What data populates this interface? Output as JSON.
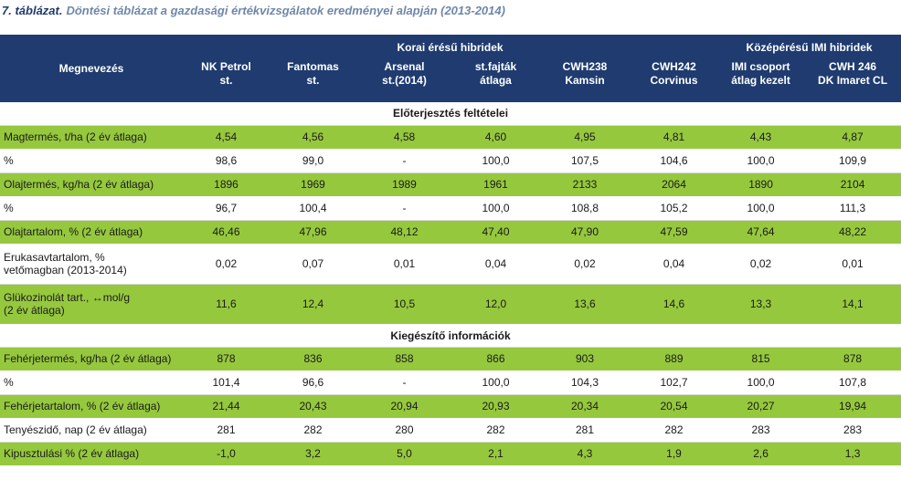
{
  "caption": {
    "number": "7. táblázat.",
    "title": "Döntési táblázat a gazdasági értékvizsgálatok eredményei alapján (2013-2014)"
  },
  "table": {
    "header": {
      "name_column": "Megnevezés",
      "groups": [
        {
          "title": "Korai érésű hibridek",
          "span": 6
        },
        {
          "title": "Középérésű  IMI hibridek",
          "span": 2
        }
      ],
      "columns": [
        "NK Petrol\nst.",
        "Fantomas\nst.",
        "Arsenal\nst.(2014)",
        "st.fajták\nátlaga",
        "CWH238\nKamsin",
        "CWH242\nCorvinus",
        "IMI csoport\nátlag kezelt",
        "CWH 246\nDK Imaret CL"
      ]
    },
    "sections": [
      {
        "title": "Előterjesztés feltételei",
        "rows": [
          {
            "label": "Magtermés, t/ha (2 év átlaga)",
            "values": [
              "4,54",
              "4,56",
              "4,58",
              "4,60",
              "4,95",
              "4,81",
              "4,43",
              "4,87"
            ]
          },
          {
            "label": "%",
            "values": [
              "98,6",
              "99,0",
              "-",
              "100,0",
              "107,5",
              "104,6",
              "100,0",
              "109,9"
            ]
          },
          {
            "label": "Olajtermés, kg/ha (2 év átlaga)",
            "values": [
              "1896",
              "1969",
              "1989",
              "1961",
              "2133",
              "2064",
              "1890",
              "2104"
            ]
          },
          {
            "label": "%",
            "values": [
              "96,7",
              "100,4",
              "-",
              "100,0",
              "108,8",
              "105,2",
              "100,0",
              "111,3"
            ]
          },
          {
            "label": "Olajtartalom, % (2 év átlaga)",
            "values": [
              "46,46",
              "47,96",
              "48,12",
              "47,40",
              "47,90",
              "47,59",
              "47,64",
              "48,22"
            ]
          },
          {
            "label": "Erukasavtartalom, %\nvetőmagban (2013-2014)",
            "values": [
              "0,02",
              "0,07",
              "0,01",
              "0,04",
              "0,02",
              "0,04",
              "0,02",
              "0,01"
            ]
          },
          {
            "label": "Glükozinolát tart., ↔mol/g\n(2 év átlaga)",
            "values": [
              "11,6",
              "12,4",
              "10,5",
              "12,0",
              "13,6",
              "14,6",
              "13,3",
              "14,1"
            ]
          }
        ]
      },
      {
        "title": "Kiegészítő információk",
        "rows": [
          {
            "label": "Fehérjetermés, kg/ha (2 év átlaga)",
            "values": [
              "878",
              "836",
              "858",
              "866",
              "903",
              "889",
              "815",
              "878"
            ]
          },
          {
            "label": "%",
            "values": [
              "101,4",
              "96,6",
              "-",
              "100,0",
              "104,3",
              "102,7",
              "100,0",
              "107,8"
            ]
          },
          {
            "label": "Fehérjetartalom, % (2 év átlaga)",
            "values": [
              "21,44",
              "20,43",
              "20,94",
              "20,93",
              "20,34",
              "20,54",
              "20,27",
              "19,94"
            ]
          },
          {
            "label": "Tenyészidő, nap (2 év átlaga)",
            "values": [
              "281",
              "282",
              "280",
              "282",
              "281",
              "282",
              "283",
              "283"
            ]
          },
          {
            "label": "Kipusztulási % (2 év átlaga)",
            "values": [
              "-1,0",
              "3,2",
              "5,0",
              "2,1",
              "4,3",
              "1,9",
              "2,6",
              "1,3"
            ]
          }
        ]
      }
    ]
  }
}
